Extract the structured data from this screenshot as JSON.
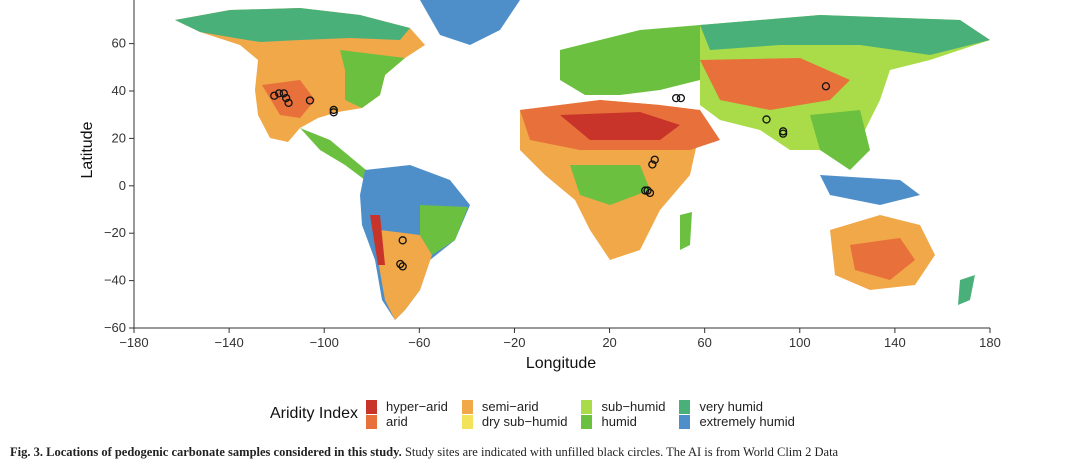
{
  "axes": {
    "x_label": "Longitude",
    "y_label": "Latitude",
    "x_ticks": [
      "−180",
      "−140",
      "−100",
      "−60",
      "−20",
      "20",
      "60",
      "100",
      "140",
      "180"
    ],
    "x_tick_values": [
      -180,
      -140,
      -100,
      -60,
      -20,
      20,
      60,
      100,
      140,
      180
    ],
    "y_ticks": [
      "60",
      "40",
      "20",
      "0",
      "−20",
      "−40",
      "−60"
    ],
    "y_tick_values": [
      60,
      40,
      20,
      0,
      -20,
      -40,
      -60
    ],
    "xlim": [
      -180,
      180
    ],
    "ylim": [
      -60,
      84
    ]
  },
  "legend": {
    "title": "Aridity Index",
    "columns": [
      [
        {
          "label": "hyper−arid",
          "color": "#c8342a"
        },
        {
          "label": "arid",
          "color": "#e8703a"
        }
      ],
      [
        {
          "label": "semi−arid",
          "color": "#f0a848"
        },
        {
          "label": "dry sub−humid",
          "color": "#f3e35a"
        }
      ],
      [
        {
          "label": "sub−humid",
          "color": "#a9dc48"
        },
        {
          "label": "humid",
          "color": "#6cc040"
        }
      ],
      [
        {
          "label": "very humid",
          "color": "#49b07a"
        },
        {
          "label": "extremely humid",
          "color": "#4f8fc9"
        }
      ]
    ]
  },
  "sample_sites": [
    {
      "lon": -121,
      "lat": 38
    },
    {
      "lon": -119,
      "lat": 39
    },
    {
      "lon": -117,
      "lat": 39
    },
    {
      "lon": -116,
      "lat": 37
    },
    {
      "lon": -115,
      "lat": 35
    },
    {
      "lon": -106,
      "lat": 36
    },
    {
      "lon": -96,
      "lat": 32
    },
    {
      "lon": -96,
      "lat": 31
    },
    {
      "lon": 48,
      "lat": 37
    },
    {
      "lon": 50,
      "lat": 37
    },
    {
      "lon": 111,
      "lat": 42
    },
    {
      "lon": 86,
      "lat": 28
    },
    {
      "lon": 93,
      "lat": 22
    },
    {
      "lon": 93,
      "lat": 23
    },
    {
      "lon": 39,
      "lat": 11
    },
    {
      "lon": 38,
      "lat": 9
    },
    {
      "lon": 35,
      "lat": -2
    },
    {
      "lon": 36,
      "lat": -2
    },
    {
      "lon": 37,
      "lat": -3
    },
    {
      "lon": -67,
      "lat": -23
    },
    {
      "lon": -68,
      "lat": -33
    },
    {
      "lon": -67,
      "lat": -34
    }
  ],
  "caption": {
    "bold": "Fig. 3.  Locations of pedogenic carbonate samples considered in this study.",
    "text": " Study sites are indicated with unfilled black circles. The AI is from World Clim 2 Data"
  }
}
